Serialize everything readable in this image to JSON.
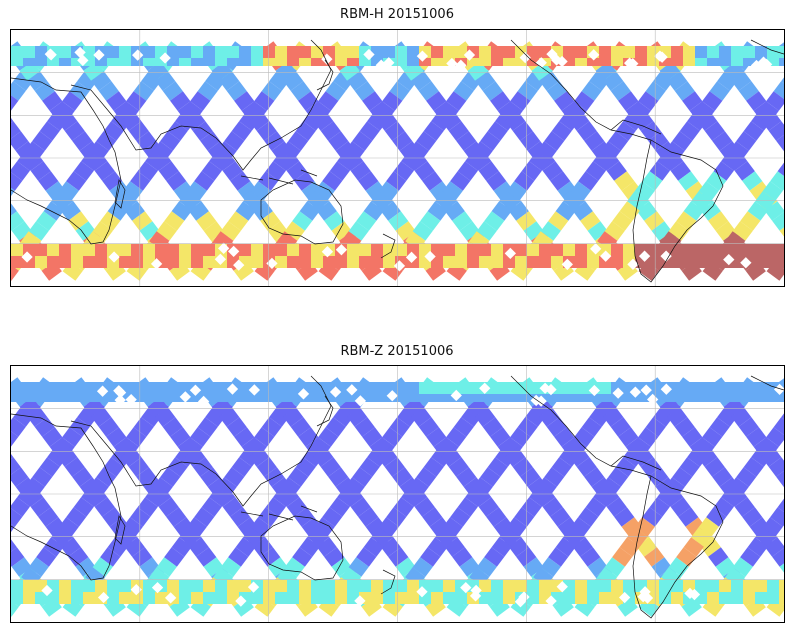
{
  "panels": [
    {
      "title": "RBM-H 20151006",
      "colormap": "jet",
      "palette": {
        "low": "#5b5cf4",
        "mid_low": "#5aa3f5",
        "mid": "#62eee6",
        "mid_high": "#f4e45c",
        "high": "#f26a5a",
        "peak": "#b65a5a"
      },
      "highlighted_regions": [
        "north-pacific-high-latitudes",
        "southern-ocean-high-latitudes",
        "south-atlantic-anomaly"
      ]
    },
    {
      "title": "RBM-Z 20151006",
      "colormap": "jet",
      "palette": {
        "low": "#5b5cf4",
        "mid_low": "#5aa3f5",
        "mid": "#62eee6",
        "mid_high": "#f4e45c",
        "high": "#f59a5a"
      },
      "highlighted_regions": [
        "southern-ocean-high-latitudes",
        "south-america-east-coast"
      ]
    }
  ],
  "map": {
    "projection": "plate-carree",
    "central_longitude": 180,
    "gridlines": true,
    "coastlines": true
  }
}
